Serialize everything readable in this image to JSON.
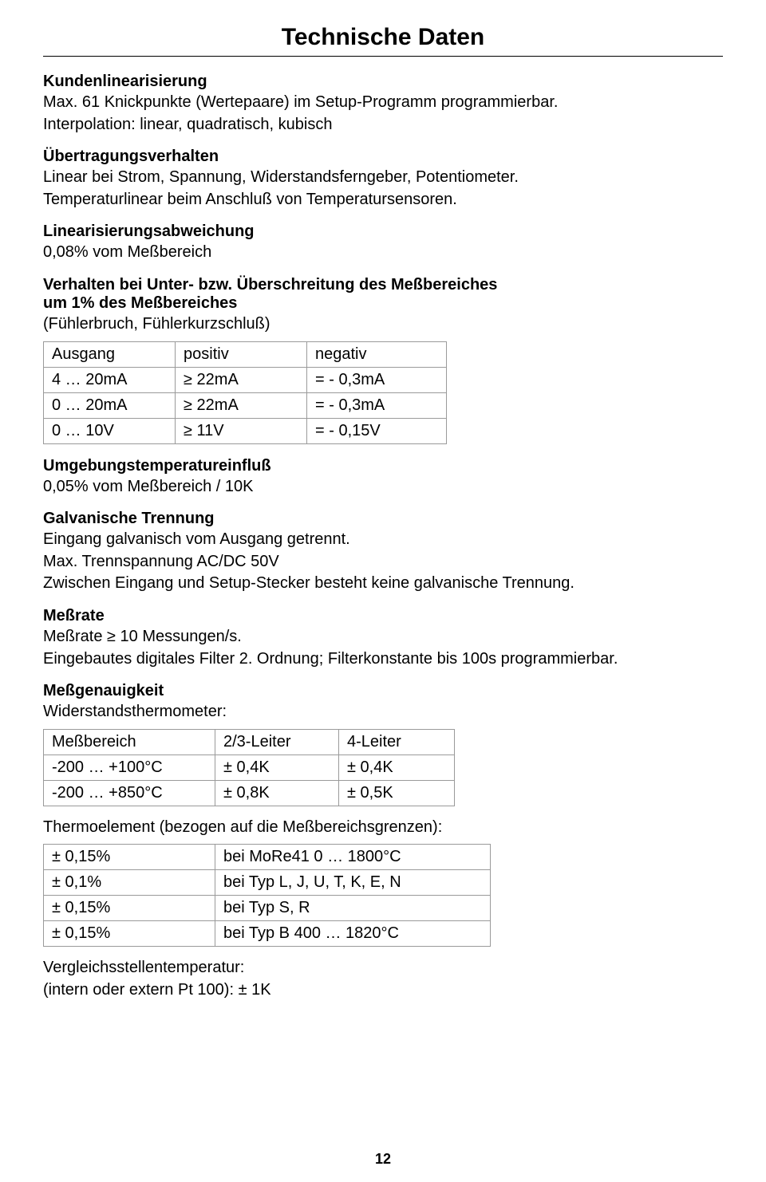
{
  "page": {
    "title": "Technische Daten",
    "number": "12"
  },
  "sections": {
    "kundenlin": {
      "head": "Kundenlinearisierung",
      "l1": "Max. 61 Knickpunkte (Wertepaare) im Setup-Programm programmierbar.",
      "l2": "Interpolation: linear, quadratisch, kubisch"
    },
    "ueber": {
      "head": "Übertragungsverhalten",
      "l1": "Linear bei Strom, Spannung, Widerstandsferngeber, Potentiometer.",
      "l2": "Temperaturlinear beim Anschluß von Temperatursensoren."
    },
    "linabw": {
      "head": "Linearisierungsabweichung",
      "l1": "0,08% vom Meßbereich"
    },
    "verhalten": {
      "head": "Verhalten bei Unter- bzw. Überschreitung des Meßbereiches",
      "sub1": "um 1% des Meßbereiches",
      "sub2": "(Fühlerbruch, Fühlerkurzschluß)"
    },
    "umgeb": {
      "head": "Umgebungstemperatureinfluß",
      "l1": "0,05% vom Meßbereich / 10K"
    },
    "galv": {
      "head": "Galvanische Trennung",
      "l1": "Eingang galvanisch vom Ausgang getrennt.",
      "l2": "Max. Trennspannung AC/DC 50V",
      "l3": "Zwischen Eingang und Setup-Stecker besteht keine galvanische Trennung."
    },
    "messrate": {
      "head": "Meßrate",
      "l1": "Meßrate ≥ 10 Messungen/s.",
      "l2": "Eingebautes digitales Filter 2. Ordnung; Filterkonstante bis 100s programmierbar."
    },
    "messgen": {
      "head": "Meßgenauigkeit",
      "l1": "Widerstandsthermometer:",
      "thermo": "Thermoelement (bezogen auf die Meßbereichsgrenzen):",
      "vgl1": "Vergleichsstellentemperatur:",
      "vgl2": "(intern oder extern Pt 100): ± 1K"
    }
  },
  "table1": {
    "header": [
      "Ausgang",
      "positiv",
      "negativ"
    ],
    "rows": [
      [
        "4 … 20mA",
        "≥ 22mA",
        "= - 0,3mA"
      ],
      [
        "0 … 20mA",
        "≥ 22mA",
        "= - 0,3mA"
      ],
      [
        "0 … 10V",
        "≥ 11V",
        "= - 0,15V"
      ]
    ]
  },
  "table2": {
    "header": [
      "Meßbereich",
      "2/3-Leiter",
      "4-Leiter"
    ],
    "rows": [
      [
        "-200 … +100°C",
        "± 0,4K",
        "± 0,4K"
      ],
      [
        "-200 … +850°C",
        "± 0,8K",
        "± 0,5K"
      ]
    ]
  },
  "table3": {
    "rows": [
      [
        "± 0,15%",
        "bei MoRe41 0 … 1800°C"
      ],
      [
        "± 0,1%",
        "bei Typ L, J, U, T, K, E, N"
      ],
      [
        "± 0,15%",
        "bei Typ S, R"
      ],
      [
        "± 0,15%",
        "bei Typ B 400 … 1820°C"
      ]
    ]
  }
}
